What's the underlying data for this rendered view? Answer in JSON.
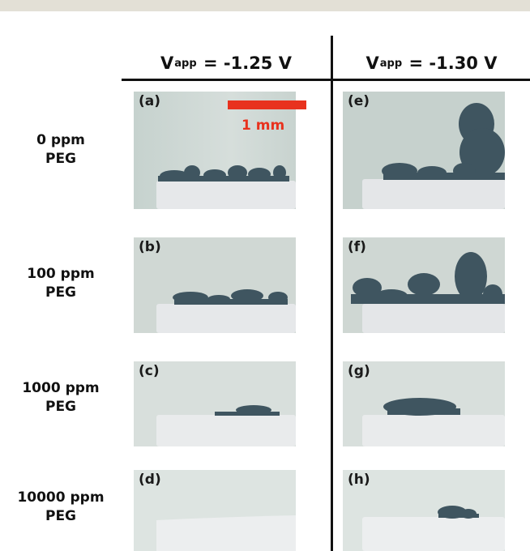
{
  "columns": {
    "col1": {
      "v": "V",
      "sub": "app",
      "rest": " = -1.25 V"
    },
    "col2": {
      "v": "V",
      "sub": "app",
      "rest": " = -1.30 V"
    }
  },
  "rows": [
    {
      "line1": "0 ppm",
      "line2": "PEG"
    },
    {
      "line1": "100 ppm",
      "line2": "PEG"
    },
    {
      "line1": "1000 ppm",
      "line2": "PEG"
    },
    {
      "line1": "10000 ppm",
      "line2": "PEG"
    }
  ],
  "panels": {
    "a": "(a)",
    "b": "(b)",
    "c": "(c)",
    "d": "(d)",
    "e": "(e)",
    "f": "(f)",
    "g": "(g)",
    "h": "(h)"
  },
  "scale_bar": {
    "label": "1 mm",
    "color": "#e8321e"
  },
  "colors": {
    "dendrite": "#3f5560",
    "electrode": "#e6e8ea",
    "background": "#c9d4d0"
  }
}
